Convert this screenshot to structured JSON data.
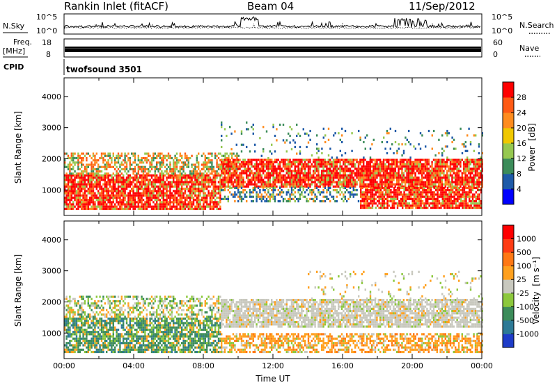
{
  "header": {
    "station": "Rankin Inlet (fitACF)",
    "beam": "Beam 04",
    "date": "11/Sep/2012"
  },
  "status_panel": {
    "nsky_label": "N.Sky",
    "nsearch_label": "N.Search",
    "nsky_ticks": [
      "10^5",
      "10^0"
    ],
    "nsearch_ticks": [
      "10^5",
      "10^0"
    ],
    "freq_label": "Freq.",
    "freq_unit": "[MHz]",
    "freq_ticks": [
      "18",
      "8"
    ],
    "nave_label": "Nave",
    "nave_ticks": [
      "60",
      "0"
    ],
    "cpid_label": "CPID",
    "cpid_value": "twofsound 3501"
  },
  "chart_data": [
    {
      "type": "heatmap",
      "name": "power-panel",
      "ylabel": "Slant Range [km]",
      "yticks": [
        "4000",
        "3000",
        "2000",
        "1000"
      ],
      "ytick_values": [
        4000,
        3000,
        2000,
        1000
      ],
      "ylim": [
        180,
        4600
      ],
      "xlim_hours": [
        0,
        24
      ],
      "colorbar": {
        "title": "Power",
        "unit": "[dB]",
        "ticks": [
          "28",
          "24",
          "20",
          "16",
          "12",
          "8",
          "4"
        ],
        "colors": [
          "#0000ff",
          "#1e5aa8",
          "#3c8c5a",
          "#96c850",
          "#f0c800",
          "#ff8c1e",
          "#ff5a14",
          "#ff0000"
        ]
      },
      "bands": [
        {
          "h0": 0,
          "h1": 9,
          "r0": 400,
          "r1": 1500,
          "level": "strong"
        },
        {
          "h0": 0,
          "h1": 10,
          "r0": 1500,
          "r1": 2200,
          "level": "medium"
        },
        {
          "h0": 9,
          "h1": 24,
          "r0": 1100,
          "r1": 2000,
          "level": "strong"
        },
        {
          "h0": 9,
          "h1": 17,
          "r0": 600,
          "r1": 1100,
          "level": "weak"
        },
        {
          "h0": 17,
          "h1": 24,
          "r0": 400,
          "r1": 1100,
          "level": "strong"
        },
        {
          "h0": 9,
          "h1": 14,
          "r0": 2000,
          "r1": 3200,
          "level": "sparse"
        },
        {
          "h0": 14,
          "h1": 24,
          "r0": 2000,
          "r1": 3000,
          "level": "sparse"
        }
      ]
    },
    {
      "type": "heatmap",
      "name": "velocity-panel",
      "ylabel": "Slant Range [km]",
      "yticks": [
        "4000",
        "3000",
        "2000",
        "1000"
      ],
      "ytick_values": [
        4000,
        3000,
        2000,
        1000
      ],
      "ylim": [
        180,
        4600
      ],
      "xlim_hours": [
        0,
        24
      ],
      "xlabel": "Time UT",
      "xticks": [
        "00:00",
        "04:00",
        "08:00",
        "12:00",
        "16:00",
        "20:00",
        "00:00"
      ],
      "xtick_hours": [
        0,
        4,
        8,
        12,
        16,
        20,
        24
      ],
      "colorbar": {
        "title": "Velocity",
        "unit": "[m s⁻¹]",
        "ticks": [
          "1000",
          "500",
          "100",
          "25",
          "-25",
          "-100",
          "-500",
          "-1000"
        ],
        "colors": [
          "#1e3cc8",
          "#2d7a96",
          "#3c8c5a",
          "#8cc83c",
          "#c8c8be",
          "#ffa01e",
          "#ff7814",
          "#ff3c14",
          "#ff0000"
        ]
      },
      "bands": [
        {
          "h0": 0,
          "h1": 9,
          "r0": 400,
          "r1": 1500,
          "level": "green"
        },
        {
          "h0": 0,
          "h1": 9,
          "r0": 1500,
          "r1": 2200,
          "level": "mixed"
        },
        {
          "h0": 9,
          "h1": 24,
          "r0": 1200,
          "r1": 2100,
          "level": "gray"
        },
        {
          "h0": 9,
          "h1": 24,
          "r0": 400,
          "r1": 1000,
          "level": "orange"
        },
        {
          "h0": 14,
          "h1": 24,
          "r0": 2100,
          "r1": 3000,
          "level": "sparse"
        }
      ]
    }
  ]
}
